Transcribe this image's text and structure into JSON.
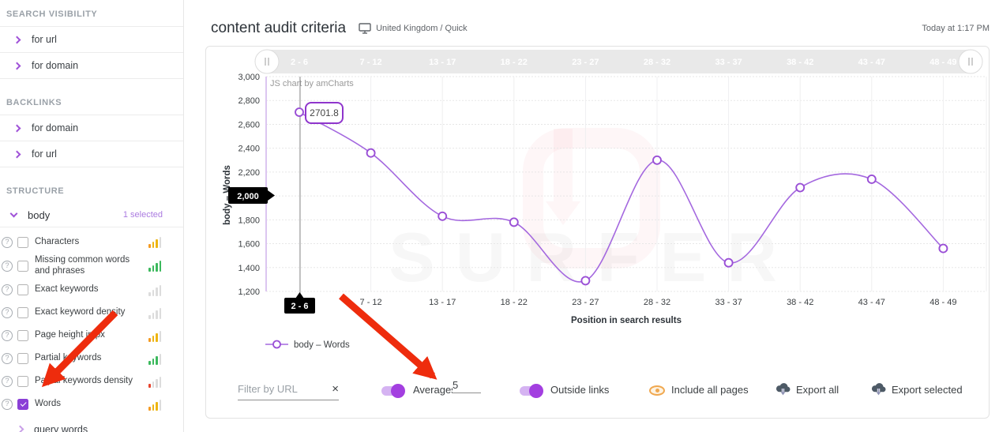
{
  "icons": {
    "help": "?",
    "clear": "×"
  },
  "colors": {
    "accent": "#9b51e0",
    "line": "#a468df",
    "point_stroke": "#9a4fd6",
    "toggle_track": "#d5b3f2",
    "toggle_knob": "#a33fe0",
    "arrow": "#ee2c0d",
    "scrollbar_bg": "#e9e9e9",
    "bar_orange": "#f59b23",
    "bar_gold": "#edb512",
    "bar_green": "#3cb95d",
    "bar_red": "#e8442e",
    "bar_gray": "#dcdcdc"
  },
  "sidebar": {
    "sections": [
      {
        "title": "SEARCH VISIBILITY",
        "links": [
          {
            "label": "for url"
          },
          {
            "label": "for domain"
          }
        ]
      },
      {
        "title": "BACKLINKS",
        "links": [
          {
            "label": "for domain"
          },
          {
            "label": "for url"
          }
        ]
      }
    ],
    "structure": {
      "title": "STRUCTURE",
      "group": {
        "label": "body",
        "selected_count": "1 selected"
      },
      "items": [
        {
          "label": "Characters",
          "checked": false,
          "bars": [
            "orange",
            "gold",
            "gold",
            "gray"
          ]
        },
        {
          "label": "Missing common words and phrases",
          "checked": false,
          "bars": [
            "green",
            "green",
            "green",
            "green"
          ]
        },
        {
          "label": "Exact keywords",
          "checked": false,
          "bars": [
            "gray",
            "gray",
            "gray",
            "gray"
          ]
        },
        {
          "label": "Exact keyword density",
          "checked": false,
          "bars": [
            "gray",
            "gray",
            "gray",
            "gray"
          ]
        },
        {
          "label": "Page height in px",
          "checked": false,
          "bars": [
            "orange",
            "gold",
            "gold",
            "gray"
          ]
        },
        {
          "label": "Partial keywords",
          "checked": false,
          "bars": [
            "green",
            "green",
            "green",
            "gray"
          ]
        },
        {
          "label": "Partial keywords density",
          "checked": false,
          "bars": [
            "red",
            "gray",
            "gray",
            "gray"
          ]
        },
        {
          "label": "Words",
          "checked": true,
          "bars": [
            "orange",
            "gold",
            "gold",
            "gray"
          ]
        }
      ],
      "footer_link": "query words"
    }
  },
  "header": {
    "title": "content audit criteria",
    "scope": "United Kingdom / Quick",
    "timestamp": "Today at 1:17 PM"
  },
  "chart_data": {
    "type": "line",
    "categories": [
      "2 - 6",
      "7 - 12",
      "13 - 17",
      "18 - 22",
      "23 - 27",
      "28 - 32",
      "33 - 37",
      "38 - 42",
      "43 - 47",
      "48 - 49"
    ],
    "series": [
      {
        "name": "body – Words",
        "values": [
          2701.8,
          2360,
          1830,
          1780,
          1290,
          2300,
          1440,
          2070,
          2140,
          1560
        ]
      }
    ],
    "xlabel": "Position in search results",
    "ylabel": "body – Words",
    "ylim": [
      1200,
      3000
    ],
    "ytick_step": 200,
    "grid": true,
    "legend_position": "bottom-left",
    "legend": [
      "body – Words"
    ],
    "tooltip": {
      "category": "2 - 6",
      "value": "2701.8"
    },
    "cursor_category_label": "2 - 6",
    "cursor_y_label": "2,000",
    "credit": "JS chart by amCharts",
    "brand_watermark": "SURFER"
  },
  "controls": {
    "filter_placeholder": "Filter by URL",
    "averages_label": "Averages",
    "averages_value": "5",
    "outside_links_label": "Outside links",
    "include_all_label": "Include all pages",
    "export_all_label": "Export all",
    "export_selected_label": "Export selected"
  }
}
